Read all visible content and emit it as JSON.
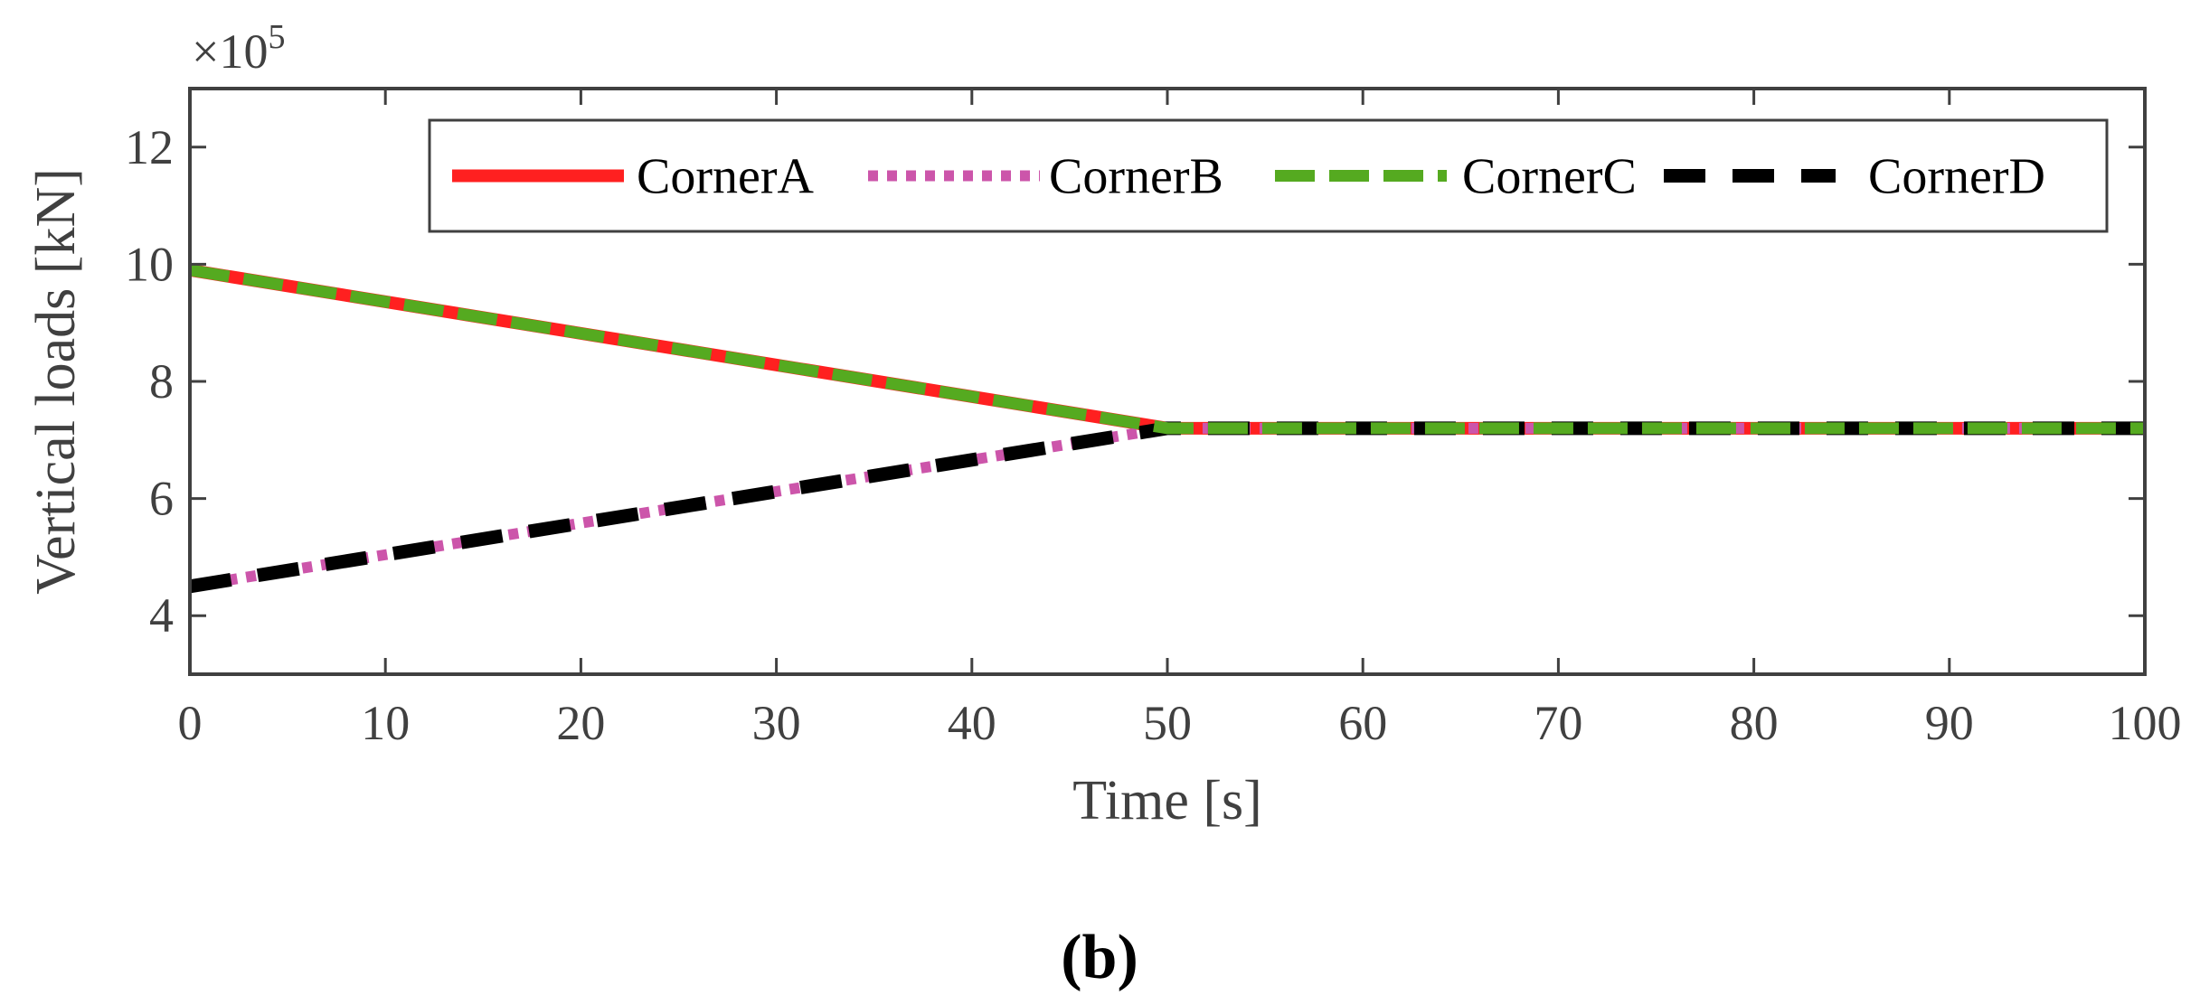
{
  "chart_data": {
    "type": "line",
    "title": "",
    "xlabel": "Time [s]",
    "ylabel": "Vertical loads [kN]",
    "y_multiplier": "×10",
    "y_multiplier_exponent": "5",
    "xlim": [
      0,
      100
    ],
    "ylim": [
      3,
      13
    ],
    "xticks": [
      0,
      10,
      20,
      30,
      40,
      50,
      60,
      70,
      80,
      90,
      100
    ],
    "yticks": [
      4,
      6,
      8,
      10,
      12
    ],
    "xtick_labels": [
      "0",
      "10",
      "20",
      "30",
      "40",
      "50",
      "60",
      "70",
      "80",
      "90",
      "100"
    ],
    "ytick_labels": [
      "4",
      "6",
      "8",
      "10",
      "12"
    ],
    "grid": false,
    "legend_position": "top-right",
    "series": [
      {
        "name": "CornerA",
        "color": "#ff2020",
        "style": "solid",
        "x": [
          0,
          50,
          100
        ],
        "y": [
          9.9,
          7.2,
          7.2
        ]
      },
      {
        "name": "CornerB",
        "color": "#cc55aa",
        "style": "dotted",
        "x": [
          0,
          50,
          100
        ],
        "y": [
          4.5,
          7.2,
          7.2
        ]
      },
      {
        "name": "CornerC",
        "color": "#55aa20",
        "style": "dashed",
        "x": [
          0,
          50,
          100
        ],
        "y": [
          9.9,
          7.2,
          7.2
        ]
      },
      {
        "name": "CornerD",
        "color": "#000000",
        "style": "dash",
        "x": [
          0,
          50,
          100
        ],
        "y": [
          4.5,
          7.2,
          7.2
        ]
      }
    ]
  },
  "caption": "(b)",
  "axis_color": "#404040"
}
